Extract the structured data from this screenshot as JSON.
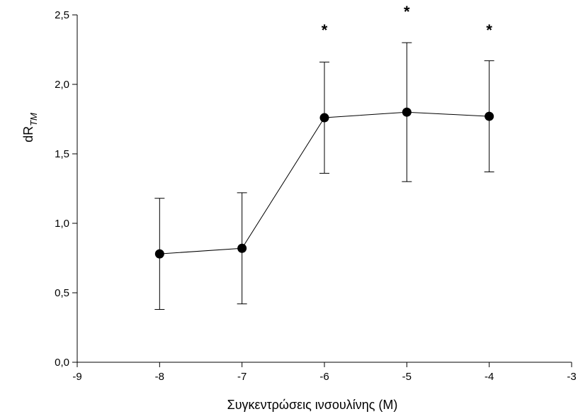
{
  "chart_data": {
    "type": "line",
    "xlabel": "Συγκεντρώσεις ινσουλίνης (M)",
    "ylabel_main": "dR",
    "ylabel_sub": "TM",
    "xlim": [
      -9,
      -3
    ],
    "ylim": [
      0,
      2.5
    ],
    "xticks": [
      -9,
      -8,
      -7,
      -6,
      -5,
      -4,
      -3
    ],
    "yticks": [
      0.0,
      0.5,
      1.0,
      1.5,
      2.0,
      2.5
    ],
    "decimal_separator": ",",
    "grid": false,
    "series": [
      {
        "x": [
          -8,
          -7,
          -6,
          -5,
          -4
        ],
        "y": [
          0.78,
          0.82,
          1.76,
          1.8,
          1.77
        ],
        "error": [
          0.4,
          0.4,
          0.4,
          0.5,
          0.4
        ],
        "color": "#000000"
      }
    ],
    "annotations": [
      {
        "x": -6,
        "text": "*"
      },
      {
        "x": -5,
        "text": "*"
      },
      {
        "x": -4,
        "text": "*"
      }
    ]
  }
}
